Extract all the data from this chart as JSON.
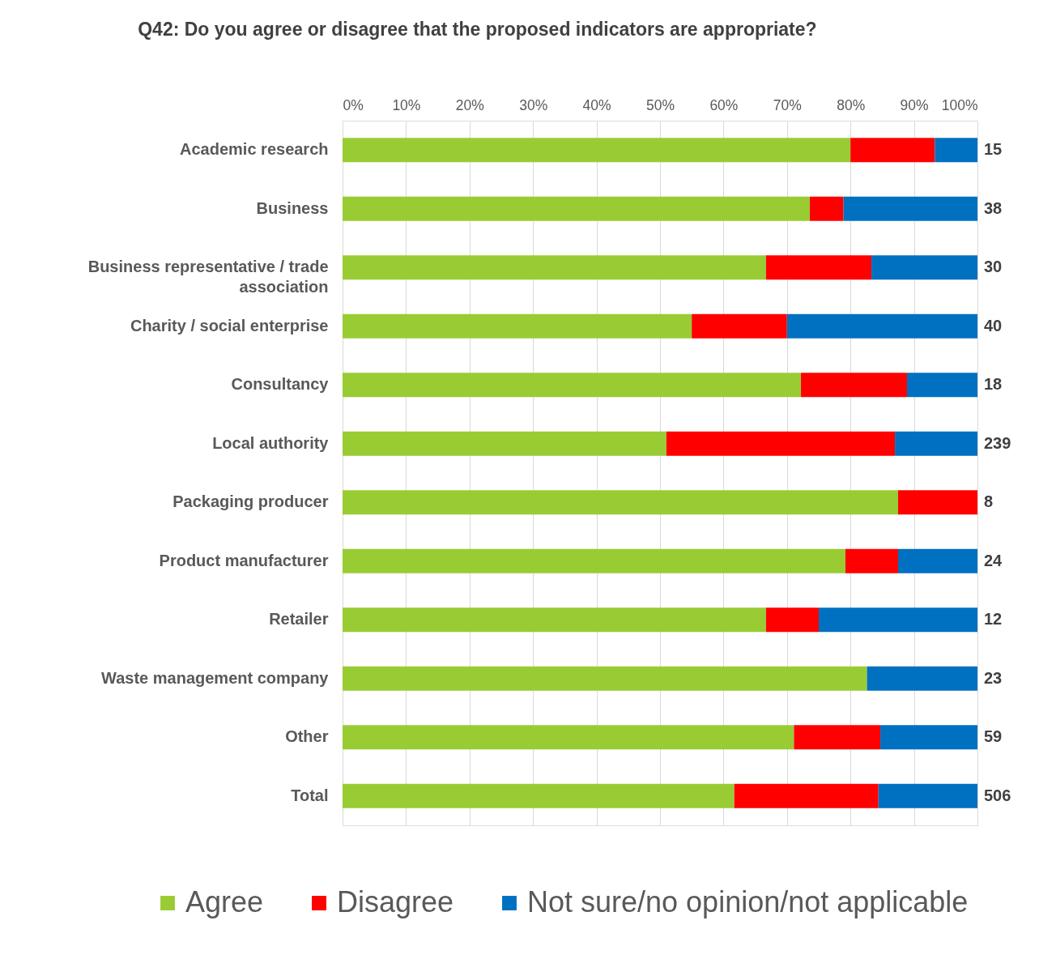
{
  "chart_data": {
    "type": "bar",
    "orientation": "horizontal",
    "stacked": true,
    "title": "Q42: Do you agree or disagree that the proposed indicators are appropriate?",
    "categories": [
      "Academic research",
      "Business",
      "Business representative / trade association",
      "Charity / social enterprise",
      "Consultancy",
      "Local authority",
      "Packaging producer",
      "Product manufacturer",
      "Retailer",
      "Waste management company",
      "Other",
      "Total"
    ],
    "series": [
      {
        "name": "Agree",
        "color": "#99cc33",
        "values": [
          80.0,
          73.6,
          66.7,
          55.0,
          72.2,
          51.0,
          87.5,
          79.2,
          66.7,
          82.6,
          71.1,
          61.7
        ]
      },
      {
        "name": "Disagree",
        "color": "#ff0000",
        "values": [
          13.3,
          5.3,
          16.6,
          15.0,
          16.7,
          36.0,
          12.5,
          8.3,
          8.3,
          null,
          13.6,
          22.7
        ]
      },
      {
        "name": "Not sure/no opinion/not applicable",
        "color": "#0070c0",
        "values": [
          6.7,
          21.1,
          16.7,
          30.0,
          11.1,
          13.0,
          null,
          12.5,
          25.0,
          17.4,
          15.3,
          15.6
        ]
      }
    ],
    "xlim": [
      0,
      100
    ],
    "xticks": [
      {
        "value": 0,
        "label": "0%"
      },
      {
        "value": 10,
        "label": "10%"
      },
      {
        "value": 20,
        "label": "20%"
      },
      {
        "value": 30,
        "label": "30%"
      },
      {
        "value": 40,
        "label": "40%"
      },
      {
        "value": 50,
        "label": "50%"
      },
      {
        "value": 60,
        "label": "60%"
      },
      {
        "value": 70,
        "label": "70%"
      },
      {
        "value": 80,
        "label": "80%"
      },
      {
        "value": 90,
        "label": "90%"
      },
      {
        "value": 100,
        "label": "100%"
      }
    ],
    "grid": "x",
    "legend": "bottom",
    "annotations": [
      "15",
      "38",
      "30",
      "40",
      "18",
      "239",
      "8",
      "24",
      "12",
      "23",
      "59",
      "506"
    ]
  }
}
